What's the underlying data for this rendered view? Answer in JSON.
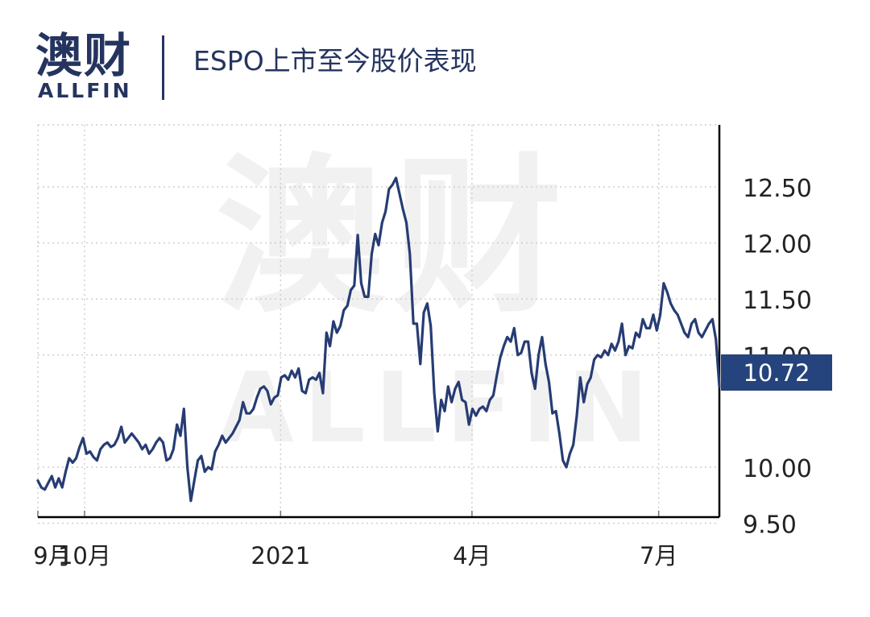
{
  "header": {
    "logo_cn": "澳财",
    "logo_en": "ALLFIN",
    "title": "ESPO上市至今股价表现"
  },
  "watermark": {
    "cn": "澳财",
    "en": "ALLFIN"
  },
  "current_price_label": "10.72",
  "colors": {
    "line": "#263c73",
    "badge": "#25437c",
    "grid": "#cfcfcf",
    "axis": "#000000"
  },
  "chart_data": {
    "type": "line",
    "title": "ESPO上市至今股价表现",
    "ylim": [
      9.5,
      12.75
    ],
    "y_ticks": [
      9.5,
      10.0,
      11.0,
      11.5,
      12.0,
      12.5
    ],
    "y_tick_labels": [
      "9.50",
      "10.00",
      "11.00",
      "11.50",
      "12.00",
      "12.50"
    ],
    "x_ticks": [
      {
        "label": "9月",
        "x": 0
      },
      {
        "label": "10月",
        "x": 10
      },
      {
        "label": "2021",
        "x": 52
      },
      {
        "label": "4月",
        "x": 93
      },
      {
        "label": "7月",
        "x": 133
      }
    ],
    "x_range": [
      0,
      146
    ],
    "grid": true,
    "series": [
      {
        "values": [
          9.88,
          9.82,
          9.8,
          9.86,
          9.92,
          9.82,
          9.9,
          9.82,
          9.96,
          10.08,
          10.04,
          10.08,
          10.18,
          10.26,
          10.12,
          10.14,
          10.09,
          10.06,
          10.16,
          10.2,
          10.22,
          10.18,
          10.2,
          10.26,
          10.36,
          10.22,
          10.26,
          10.3,
          10.26,
          10.22,
          10.16,
          10.2,
          10.12,
          10.16,
          10.22,
          10.26,
          10.22,
          10.06,
          10.08,
          10.16,
          10.38,
          10.28,
          10.52,
          10.0,
          9.7,
          9.88,
          10.06,
          10.1,
          9.96,
          10.0,
          9.98,
          10.14,
          10.2,
          10.28,
          10.22,
          10.26,
          10.3,
          10.36,
          10.42,
          10.58,
          10.48,
          10.48,
          10.52,
          10.62,
          10.7,
          10.72,
          10.68,
          10.56,
          10.62,
          10.64,
          10.8,
          10.82,
          10.78,
          10.86,
          10.8,
          10.88,
          10.68,
          10.66,
          10.78,
          10.8,
          10.78,
          10.84,
          10.66,
          11.2,
          11.08,
          11.3,
          11.2,
          11.26,
          11.4,
          11.44,
          11.58,
          11.62,
          12.07,
          11.64,
          11.52,
          11.52,
          11.9,
          12.08,
          11.98,
          12.18,
          12.28,
          12.48,
          12.52,
          12.58,
          12.44,
          12.3,
          12.18,
          11.9,
          11.28,
          11.28,
          10.92,
          11.38,
          11.46,
          11.26,
          10.66,
          10.32,
          10.6,
          10.5,
          10.72,
          10.58,
          10.7,
          10.76,
          10.6,
          10.58,
          10.38,
          10.52,
          10.46,
          10.52,
          10.54,
          10.5,
          10.6,
          10.64,
          10.82,
          10.98,
          11.08,
          11.16,
          11.12,
          11.24,
          11.0,
          11.02,
          11.12,
          11.12,
          10.84,
          10.7,
          11.0,
          11.16,
          10.92,
          10.76,
          10.48,
          10.5,
          10.3,
          10.06,
          10.0,
          10.12,
          10.2,
          10.46,
          10.8,
          10.58,
          10.74,
          10.8,
          10.96,
          11.0,
          10.98,
          11.04,
          11.0,
          11.1,
          11.04,
          11.12,
          11.28,
          11.0,
          11.08,
          11.06,
          11.2,
          11.16,
          11.32,
          11.24,
          11.24,
          11.36,
          11.22,
          11.36,
          11.64,
          11.56,
          11.46,
          11.4,
          11.36,
          11.28,
          11.2,
          11.16,
          11.28,
          11.32,
          11.2,
          11.16,
          11.22,
          11.28,
          11.32,
          11.14,
          10.72
        ]
      }
    ]
  }
}
